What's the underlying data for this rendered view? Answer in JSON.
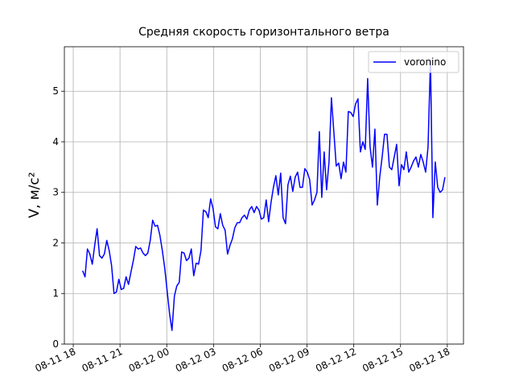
{
  "chart_data": {
    "type": "line",
    "title": "Средняя скорость горизонтального ветра",
    "ylabel": "V, м/с²",
    "x": [
      18.6,
      18.755,
      18.91,
      19.065,
      19.22,
      19.375,
      19.53,
      19.685,
      19.84,
      19.995,
      20.15,
      20.305,
      20.46,
      20.615,
      20.77,
      20.925,
      21.08,
      21.235,
      21.39,
      21.545,
      21.7,
      21.855,
      22.01,
      22.165,
      22.32,
      22.475,
      22.63,
      22.785,
      22.94,
      23.095,
      23.25,
      23.405,
      23.56,
      23.715,
      23.87,
      24.025,
      24.18,
      24.335,
      24.49,
      24.645,
      24.8,
      24.955,
      25.11,
      25.265,
      25.42,
      25.575,
      25.73,
      25.885,
      26.04,
      26.195,
      26.35,
      26.505,
      26.66,
      26.815,
      26.97,
      27.125,
      27.28,
      27.435,
      27.59,
      27.745,
      27.9,
      28.055,
      28.21,
      28.365,
      28.52,
      28.675,
      28.83,
      28.985,
      29.14,
      29.295,
      29.45,
      29.605,
      29.76,
      29.915,
      30.07,
      30.225,
      30.38,
      30.535,
      30.69,
      30.845,
      31.0,
      31.155,
      31.31,
      31.465,
      31.62,
      31.775,
      31.93,
      32.085,
      32.24,
      32.395,
      32.55,
      32.705,
      32.86,
      33.015,
      33.17,
      33.325,
      33.48,
      33.635,
      33.79,
      33.945,
      34.1,
      34.255,
      34.41,
      34.565,
      34.72,
      34.875,
      35.03,
      35.185,
      35.34,
      35.495,
      35.65,
      35.805,
      35.96,
      36.115,
      36.27,
      36.425,
      36.58,
      36.735,
      36.89,
      37.045,
      37.2,
      37.355,
      37.51,
      37.665,
      37.82,
      37.975,
      38.13,
      38.285,
      38.44,
      38.595,
      38.75,
      38.905,
      39.06,
      39.215,
      39.37,
      39.525,
      39.68,
      39.835,
      39.99,
      40.145,
      40.3,
      40.455,
      40.61,
      40.765,
      40.92,
      41.075,
      41.23,
      41.385,
      41.54,
      41.695,
      41.85
    ],
    "series": [
      {
        "name": "voronino",
        "color": "#0000ff",
        "values": [
          1.45,
          1.33,
          1.88,
          1.78,
          1.58,
          1.95,
          2.28,
          1.75,
          1.7,
          1.78,
          2.05,
          1.85,
          1.55,
          1.0,
          1.03,
          1.28,
          1.08,
          1.1,
          1.33,
          1.18,
          1.42,
          1.65,
          1.93,
          1.88,
          1.9,
          1.8,
          1.75,
          1.8,
          2.05,
          2.45,
          2.33,
          2.35,
          2.15,
          1.85,
          1.5,
          1.05,
          0.6,
          0.27,
          0.95,
          1.15,
          1.22,
          1.82,
          1.8,
          1.65,
          1.7,
          1.88,
          1.35,
          1.6,
          1.58,
          1.85,
          2.65,
          2.62,
          2.5,
          2.87,
          2.68,
          2.32,
          2.28,
          2.58,
          2.35,
          2.25,
          1.78,
          1.95,
          2.08,
          2.3,
          2.4,
          2.4,
          2.5,
          2.55,
          2.47,
          2.65,
          2.72,
          2.6,
          2.72,
          2.65,
          2.47,
          2.5,
          2.85,
          2.42,
          2.8,
          3.1,
          3.33,
          2.95,
          3.38,
          2.5,
          2.38,
          3.15,
          3.32,
          3.02,
          3.3,
          3.4,
          3.1,
          3.1,
          3.47,
          3.4,
          3.25,
          2.75,
          2.85,
          3.0,
          4.2,
          2.9,
          3.8,
          3.05,
          3.6,
          4.87,
          4.2,
          3.52,
          3.58,
          3.27,
          3.6,
          3.4,
          4.6,
          4.58,
          4.5,
          4.75,
          4.85,
          3.8,
          4.0,
          3.85,
          5.25,
          3.9,
          3.5,
          4.25,
          2.75,
          3.3,
          3.7,
          4.15,
          4.15,
          3.5,
          3.45,
          3.7,
          3.95,
          3.13,
          3.55,
          3.45,
          3.8,
          3.4,
          3.5,
          3.62,
          3.7,
          3.5,
          3.75,
          3.6,
          3.4,
          3.9,
          5.62,
          2.5,
          3.6,
          3.1,
          3.0,
          3.05,
          3.3
        ]
      }
    ],
    "xlim": [
      17.43,
      43.04
    ],
    "xticks": [
      {
        "value": 18,
        "label": "08-11 18"
      },
      {
        "value": 21,
        "label": "08-11 21"
      },
      {
        "value": 24,
        "label": "08-12 00"
      },
      {
        "value": 27,
        "label": "08-12 03"
      },
      {
        "value": 30,
        "label": "08-12 06"
      },
      {
        "value": 33,
        "label": "08-12 09"
      },
      {
        "value": 36,
        "label": "08-12 12"
      },
      {
        "value": 39,
        "label": "08-12 15"
      },
      {
        "value": 42,
        "label": "08-12 18"
      }
    ],
    "ylim": [
      0,
      5.88
    ],
    "yticks": [
      0,
      1,
      2,
      3,
      4,
      5
    ],
    "grid": true,
    "legend": "upper right"
  }
}
